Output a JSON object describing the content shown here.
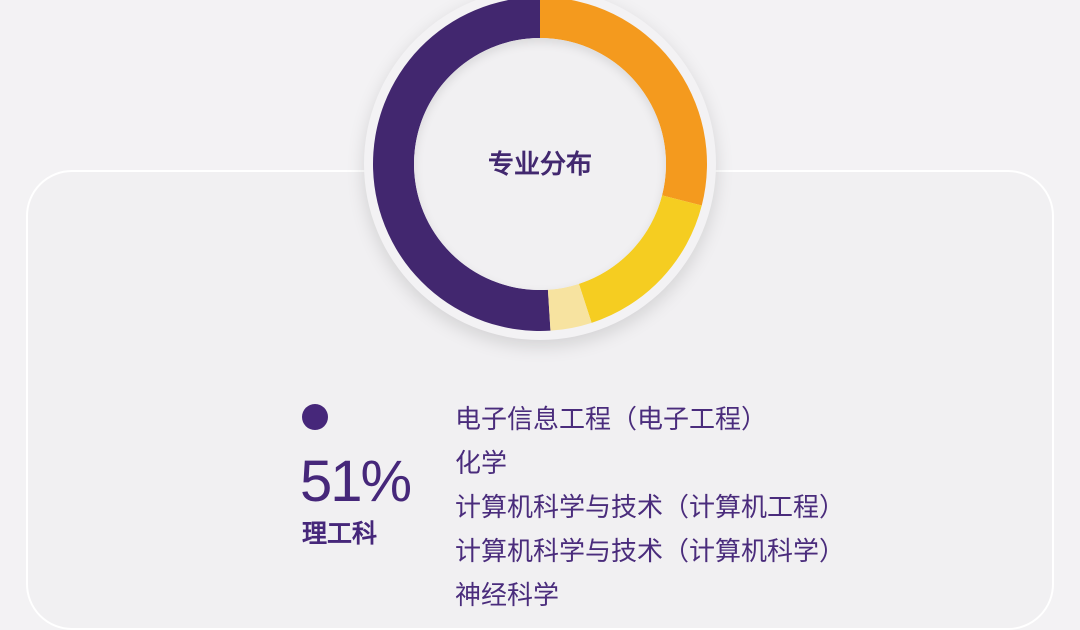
{
  "chart_data": {
    "type": "pie",
    "title": "专业分布",
    "slices": [
      {
        "label": "理工科",
        "value": 51,
        "color": "#42276f"
      },
      {
        "label": "",
        "value": 29,
        "color": "#f49a1e"
      },
      {
        "label": "",
        "value": 16,
        "color": "#f5cd21"
      },
      {
        "label": "",
        "value": 4,
        "color": "#f7e3a0"
      }
    ]
  },
  "legend": {
    "percent": "51%",
    "label": "理工科",
    "color": "#46277a",
    "majors": [
      "电子信息工程（电子工程）",
      "化学",
      "计算机科学与技术（计算机工程）",
      "计算机科学与技术（计算机科学）",
      "神经科学"
    ]
  }
}
